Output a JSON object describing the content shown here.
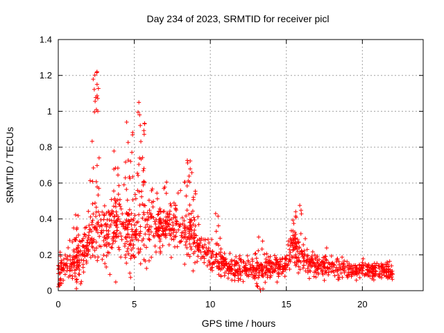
{
  "chart_data": {
    "type": "scatter",
    "title": "Day 234 of 2023, SRMTID for receiver picl",
    "xlabel": "GPS time / hours",
    "ylabel": "SRMTID / TECUs",
    "xlim": [
      0,
      24
    ],
    "ylim": [
      0,
      1.4
    ],
    "x_ticks": [
      0,
      5,
      10,
      15,
      20
    ],
    "x_tick_labels": [
      "0",
      "5",
      "10",
      "15",
      "20"
    ],
    "y_ticks": [
      0,
      0.2,
      0.4,
      0.6,
      0.8,
      1.0,
      1.2,
      1.4
    ],
    "y_tick_labels": [
      "0",
      "0.2",
      "0.4",
      "0.6",
      "0.8",
      "1",
      "1.2",
      "1.4"
    ],
    "grid": true,
    "marker": "+",
    "series": [
      {
        "name": "picl",
        "color": "#ff0000",
        "profile": [
          [
            0.0,
            0.1,
            0.04
          ],
          [
            0.5,
            0.14,
            0.05
          ],
          [
            1.0,
            0.16,
            0.06
          ],
          [
            1.5,
            0.2,
            0.07
          ],
          [
            2.0,
            0.25,
            0.09
          ],
          [
            2.5,
            0.3,
            0.12
          ],
          [
            3.0,
            0.28,
            0.1
          ],
          [
            3.5,
            0.33,
            0.12
          ],
          [
            4.0,
            0.32,
            0.12
          ],
          [
            4.5,
            0.3,
            0.12
          ],
          [
            5.0,
            0.28,
            0.1
          ],
          [
            5.5,
            0.34,
            0.12
          ],
          [
            6.0,
            0.35,
            0.1
          ],
          [
            6.5,
            0.34,
            0.09
          ],
          [
            7.0,
            0.35,
            0.08
          ],
          [
            7.5,
            0.36,
            0.08
          ],
          [
            8.0,
            0.34,
            0.08
          ],
          [
            8.5,
            0.32,
            0.08
          ],
          [
            9.0,
            0.26,
            0.06
          ],
          [
            9.5,
            0.22,
            0.05
          ],
          [
            10.0,
            0.19,
            0.05
          ],
          [
            10.5,
            0.17,
            0.05
          ],
          [
            11.0,
            0.14,
            0.04
          ],
          [
            11.5,
            0.12,
            0.04
          ],
          [
            12.0,
            0.12,
            0.04
          ],
          [
            12.5,
            0.12,
            0.04
          ],
          [
            13.0,
            0.11,
            0.04
          ],
          [
            13.5,
            0.12,
            0.04
          ],
          [
            14.0,
            0.12,
            0.04
          ],
          [
            14.5,
            0.14,
            0.04
          ],
          [
            15.0,
            0.16,
            0.05
          ],
          [
            15.5,
            0.25,
            0.08
          ],
          [
            16.0,
            0.22,
            0.07
          ],
          [
            16.5,
            0.14,
            0.04
          ],
          [
            17.0,
            0.13,
            0.04
          ],
          [
            17.5,
            0.14,
            0.04
          ],
          [
            18.0,
            0.13,
            0.04
          ],
          [
            18.5,
            0.12,
            0.04
          ],
          [
            19.0,
            0.12,
            0.03
          ],
          [
            19.5,
            0.11,
            0.03
          ],
          [
            20.0,
            0.11,
            0.03
          ],
          [
            20.5,
            0.11,
            0.03
          ],
          [
            21.0,
            0.11,
            0.03
          ],
          [
            21.5,
            0.11,
            0.03
          ],
          [
            22.0,
            0.1,
            0.03
          ]
        ],
        "x_end": 22.0,
        "n_background": 1400,
        "clusters": [
          {
            "x": [
              2.2,
              2.7
            ],
            "y": [
              0.3,
              1.22
            ],
            "n": 28
          },
          {
            "x": [
              3.6,
              4.1
            ],
            "y": [
              0.3,
              0.88
            ],
            "n": 22
          },
          {
            "x": [
              4.4,
              4.9
            ],
            "y": [
              0.3,
              0.94
            ],
            "n": 22
          },
          {
            "x": [
              5.1,
              5.7
            ],
            "y": [
              0.4,
              1.05
            ],
            "n": 26
          },
          {
            "x": [
              6.0,
              7.2
            ],
            "y": [
              0.3,
              0.62
            ],
            "n": 26
          },
          {
            "x": [
              8.3,
              8.8
            ],
            "y": [
              0.35,
              0.74
            ],
            "n": 18
          },
          {
            "x": [
              8.8,
              9.3
            ],
            "y": [
              0.2,
              0.58
            ],
            "n": 14
          },
          {
            "x": [
              15.4,
              16.0
            ],
            "y": [
              0.2,
              0.48
            ],
            "n": 18
          },
          {
            "x": [
              1.0,
              1.4
            ],
            "y": [
              0.2,
              0.45
            ],
            "n": 10
          },
          {
            "x": [
              10.3,
              10.6
            ],
            "y": [
              0.15,
              0.44
            ],
            "n": 10
          },
          {
            "x": [
              12.9,
              13.5
            ],
            "y": [
              0.0,
              0.3
            ],
            "n": 12
          },
          {
            "x": [
              0.0,
              0.3
            ],
            "y": [
              0.02,
              0.2
            ],
            "n": 14
          }
        ],
        "notable_points": [
          {
            "x": 2.55,
            "y": 1.22
          },
          {
            "x": 2.55,
            "y": 1.15
          },
          {
            "x": 2.6,
            "y": 1.0
          },
          {
            "x": 5.3,
            "y": 1.05
          },
          {
            "x": 5.35,
            "y": 0.98
          },
          {
            "x": 4.5,
            "y": 0.94
          },
          {
            "x": 13.3,
            "y": 0.0
          }
        ]
      }
    ]
  }
}
